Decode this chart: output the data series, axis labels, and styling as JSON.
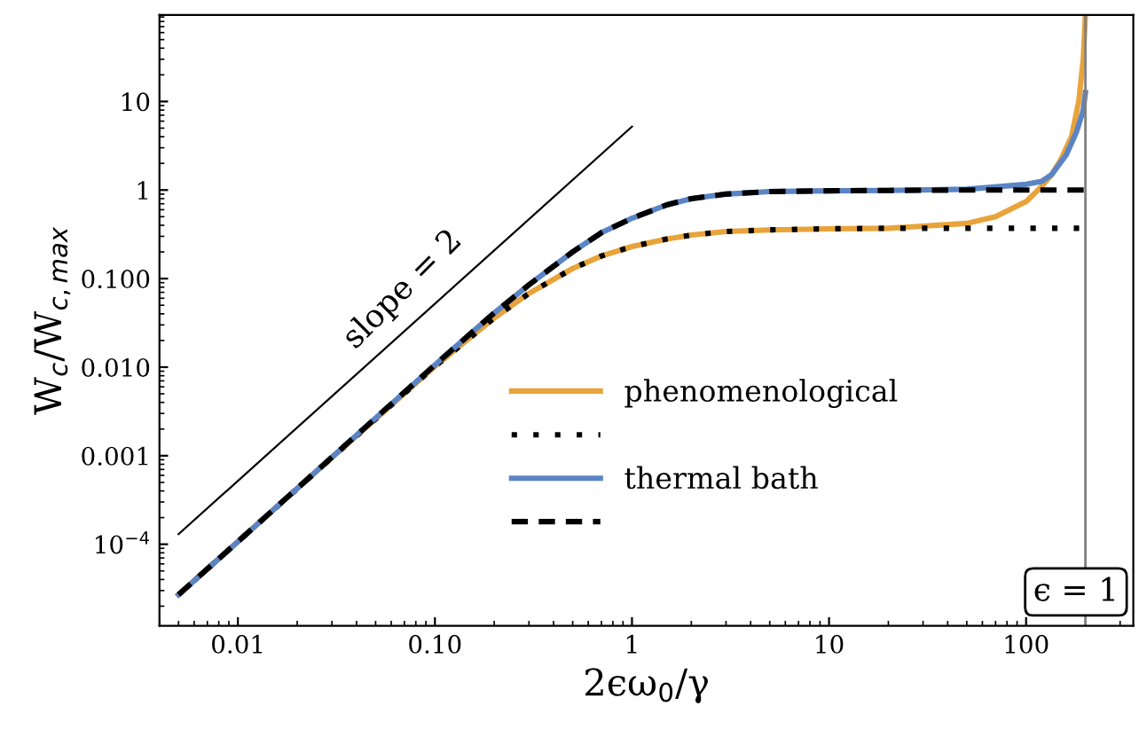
{
  "chart_data": {
    "type": "line",
    "xlabel": "2ϵω$_{0}$/γ",
    "ylabel": "W$_{c}$/W$_{c,max}$",
    "log": "xy",
    "xlim": [
      0.004,
      350
    ],
    "ylim": [
      1.2e-05,
      95
    ],
    "xticks": [
      {
        "value": 0.01,
        "label": "0.01"
      },
      {
        "value": 0.1,
        "label": "0.10"
      },
      1,
      10,
      100
    ],
    "yticks": [
      {
        "value": 0.0001,
        "label": "10$^{−4}$"
      },
      {
        "value": 0.001,
        "label": "0.001"
      },
      {
        "value": 0.01,
        "label": "0.010"
      },
      {
        "value": 0.1,
        "label": "0.100"
      },
      1,
      10
    ],
    "series": [
      {
        "name": "phenomenological",
        "color": "#e8a33a",
        "line_style": "solid",
        "x": [
          0.005,
          0.01,
          0.03,
          0.1,
          0.2,
          0.3,
          0.5,
          0.7,
          1,
          1.5,
          2,
          3,
          5,
          10,
          20,
          50,
          70,
          100,
          120,
          135,
          150,
          170,
          185,
          195,
          200
        ],
        "values": [
          2.7e-05,
          0.000107,
          0.00095,
          0.0102,
          0.036,
          0.068,
          0.13,
          0.18,
          0.23,
          0.28,
          0.31,
          0.34,
          0.355,
          0.365,
          0.37,
          0.42,
          0.5,
          0.74,
          1.1,
          1.5,
          2.2,
          4,
          10,
          30,
          95
        ]
      },
      {
        "color": "#000000",
        "line_style": "dotted",
        "x": [
          0.005,
          0.01,
          0.03,
          0.1,
          0.2,
          0.3,
          0.5,
          0.7,
          1,
          1.5,
          2,
          3,
          5,
          10,
          20,
          50,
          100,
          200
        ],
        "values": [
          2.7e-05,
          0.000107,
          0.00095,
          0.0102,
          0.036,
          0.068,
          0.13,
          0.18,
          0.23,
          0.28,
          0.31,
          0.34,
          0.355,
          0.365,
          0.37,
          0.37,
          0.37,
          0.37
        ]
      },
      {
        "name": "thermal bath",
        "color": "#5b84c4",
        "line_style": "solid",
        "x": [
          0.005,
          0.01,
          0.03,
          0.1,
          0.2,
          0.3,
          0.5,
          0.7,
          1,
          1.5,
          2,
          3,
          5,
          10,
          20,
          50,
          100,
          120,
          135,
          160,
          180,
          195,
          200
        ],
        "values": [
          2.7e-05,
          0.000107,
          0.00096,
          0.0106,
          0.041,
          0.085,
          0.2,
          0.33,
          0.48,
          0.68,
          0.8,
          0.9,
          0.96,
          0.98,
          0.99,
          1.02,
          1.16,
          1.25,
          1.5,
          2.5,
          4.5,
          8,
          12.6
        ]
      },
      {
        "color": "#000000",
        "line_style": "dashed",
        "x": [
          0.005,
          0.01,
          0.03,
          0.1,
          0.2,
          0.3,
          0.5,
          0.7,
          1,
          1.5,
          2,
          3,
          5,
          10,
          20,
          50,
          100,
          200
        ],
        "values": [
          2.7e-05,
          0.000107,
          0.00096,
          0.0106,
          0.041,
          0.085,
          0.2,
          0.33,
          0.48,
          0.68,
          0.8,
          0.9,
          0.96,
          0.98,
          0.99,
          1.0,
          1.0,
          1.0
        ]
      },
      {
        "color": "#000000",
        "line_style": "solid",
        "x": [
          0.005,
          1
        ],
        "values": [
          0.00013,
          5.2
        ]
      }
    ],
    "ref_lines": [
      {
        "axis": "x",
        "value": 200,
        "color": "#808080"
      }
    ],
    "annotations": [
      "slope = 2",
      "ϵ = 1"
    ],
    "legend": "bottom",
    "grid": false,
    "marker": "none"
  }
}
